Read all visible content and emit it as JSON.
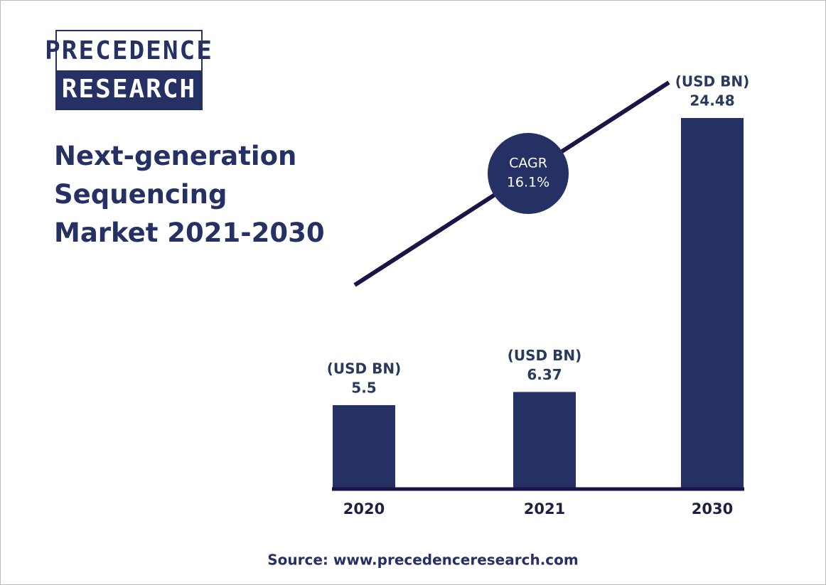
{
  "header": {
    "logo_top": "PRECEDENCE",
    "logo_bottom": "RESEARCH"
  },
  "chart_data": {
    "type": "bar",
    "title": "Next-generation Sequencing Market 2021-2030",
    "categories": [
      "2020",
      "2021",
      "2030"
    ],
    "values": [
      5.5,
      6.37,
      24.48
    ],
    "value_unit": "(USD BN)",
    "color": "#253064",
    "cagr_label": "CAGR",
    "cagr_value": "16.1%",
    "source": "Source: www.precedenceresearch.com"
  }
}
